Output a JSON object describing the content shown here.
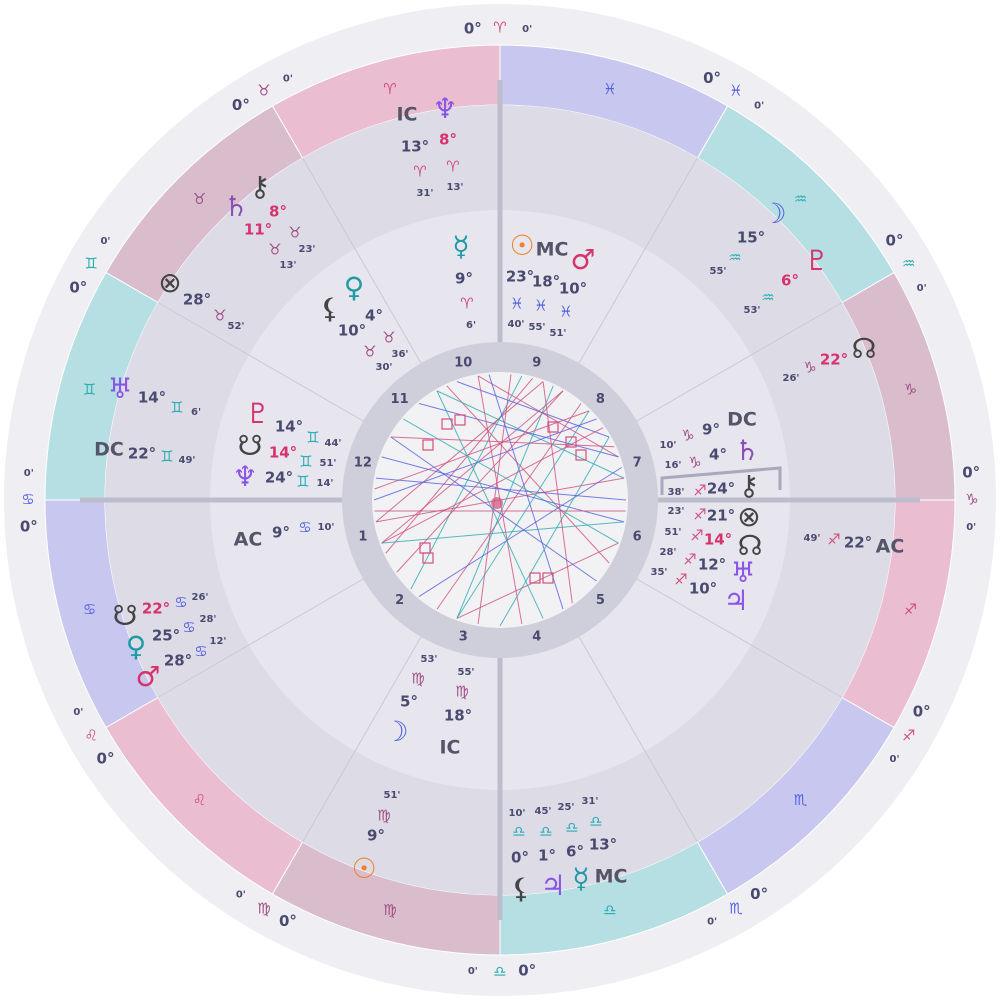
{
  "signs": [
    {
      "glyph": "♈",
      "degree": "0°",
      "minute": "0'"
    },
    {
      "glyph": "♉",
      "degree": "0°",
      "minute": "0'"
    },
    {
      "glyph": "♊",
      "degree": "0°",
      "minute": "0'"
    },
    {
      "glyph": "♋",
      "degree": "0°",
      "minute": "0'"
    },
    {
      "glyph": "♌",
      "degree": "0°",
      "minute": "0'"
    },
    {
      "glyph": "♍",
      "degree": "0°",
      "minute": "0'"
    },
    {
      "glyph": "♎",
      "degree": "0°",
      "minute": "0'"
    },
    {
      "glyph": "♏",
      "degree": "0°",
      "minute": "0'"
    },
    {
      "glyph": "♐",
      "degree": "0°",
      "minute": "0'"
    },
    {
      "glyph": "♑",
      "degree": "0°",
      "minute": "0'"
    },
    {
      "glyph": "♒",
      "degree": "0°",
      "minute": "0'"
    },
    {
      "glyph": "♓",
      "degree": "0°",
      "minute": "0'"
    }
  ],
  "houses": [
    1,
    2,
    3,
    4,
    5,
    6,
    7,
    8,
    9,
    10,
    11,
    12
  ],
  "placements": [
    {
      "glyph": "IC",
      "degree": "13°",
      "sign": "♈",
      "minute": "31'"
    },
    {
      "glyph": "♆",
      "degree": "8°",
      "sign": "♈",
      "minute": "13'"
    },
    {
      "glyph": "♄",
      "degree": "11°",
      "sign": "♉",
      "minute": "13'"
    },
    {
      "glyph": "⚷",
      "degree": "8°",
      "sign": "♉",
      "minute": "23'"
    },
    {
      "glyph": "⊗",
      "degree": "28°",
      "sign": "♉",
      "minute": "52'"
    },
    {
      "glyph": "♅",
      "degree": "14°",
      "sign": "♊",
      "minute": "6'"
    },
    {
      "glyph": "DC",
      "degree": "22°",
      "sign": "♊",
      "minute": "49'"
    },
    {
      "glyph": "AC",
      "degree": "9°",
      "sign": "♋",
      "minute": "10'"
    },
    {
      "glyph": "☋",
      "degree": "22°",
      "sign": "♋",
      "minute": "26'"
    },
    {
      "glyph": "♀",
      "degree": "25°",
      "sign": "♋",
      "minute": "28'"
    },
    {
      "glyph": "♂",
      "degree": "28°",
      "sign": "♋",
      "minute": "12'"
    },
    {
      "glyph": "☽",
      "degree": "5°",
      "sign": "♍",
      "minute": "53'"
    },
    {
      "glyph": "IC",
      "degree": "18°",
      "sign": "♍",
      "minute": "55'"
    },
    {
      "glyph": "☉",
      "degree": "9°",
      "sign": "♍",
      "minute": "51'"
    },
    {
      "glyph": "⚸",
      "degree": "0°",
      "sign": "♎",
      "minute": "10'"
    },
    {
      "glyph": "♃",
      "degree": "1°",
      "sign": "♎",
      "minute": "45'"
    },
    {
      "glyph": "☿",
      "degree": "6°",
      "sign": "♎",
      "minute": "25'"
    },
    {
      "glyph": "MC",
      "degree": "13°",
      "sign": "♎",
      "minute": "31'"
    },
    {
      "glyph": "AC",
      "degree": "22°",
      "sign": "♐",
      "minute": "49'"
    },
    {
      "glyph": "☊",
      "degree": "22°",
      "sign": "♑",
      "minute": "26'"
    },
    {
      "glyph": "☽",
      "degree": "15°",
      "sign": "♒",
      "minute": "55'"
    },
    {
      "glyph": "♇",
      "degree": "6°",
      "sign": "♒",
      "minute": "53'"
    },
    {
      "glyph": "☿",
      "degree": "9°",
      "sign": "♈",
      "minute": "6'"
    },
    {
      "glyph": "☉",
      "degree": "23°",
      "sign": "♓",
      "minute": "40'"
    },
    {
      "glyph": "MC",
      "degree": "18°",
      "sign": "♓",
      "minute": "55'"
    },
    {
      "glyph": "♂",
      "degree": "10°",
      "sign": "♓",
      "minute": "51'"
    },
    {
      "glyph": "⚸",
      "degree": "10°",
      "sign": "♉",
      "minute": "30'"
    },
    {
      "glyph": "♀",
      "degree": "4°",
      "sign": "♉",
      "minute": "36'"
    },
    {
      "glyph": "♇",
      "degree": "14°",
      "sign": "♊",
      "minute": "44'"
    },
    {
      "glyph": "☋",
      "degree": "14°",
      "sign": "♊",
      "minute": "51'"
    },
    {
      "glyph": "♆",
      "degree": "24°",
      "sign": "♊",
      "minute": "14'"
    },
    {
      "glyph": "DC",
      "degree": "9°",
      "sign": "♑",
      "minute": "10'"
    },
    {
      "glyph": "♄",
      "degree": "4°",
      "sign": "♑",
      "minute": "16'"
    },
    {
      "glyph": "⚷",
      "degree": "24°",
      "sign": "♐",
      "minute": "38'"
    },
    {
      "glyph": "⊗",
      "degree": "21°",
      "sign": "♐",
      "minute": "23'"
    },
    {
      "glyph": "☊",
      "degree": "14°",
      "sign": "♐",
      "minute": "51'"
    },
    {
      "glyph": "♅",
      "degree": "12°",
      "sign": "♐",
      "minute": "28'"
    },
    {
      "glyph": "♃",
      "degree": "10°",
      "sign": "♐",
      "minute": "35'"
    }
  ]
}
